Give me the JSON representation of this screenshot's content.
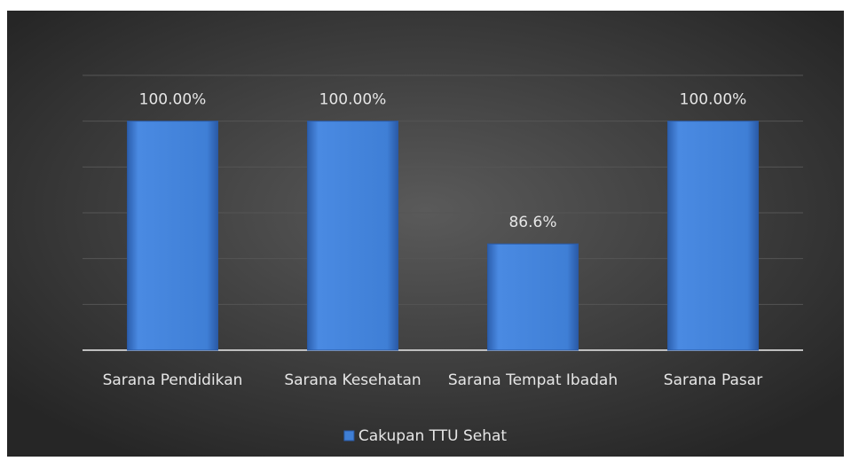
{
  "chart_data": {
    "type": "bar",
    "categories": [
      "Sarana Pendidikan",
      "Sarana Kesehatan",
      "Sarana Tempat Ibadah",
      "Sarana Pasar"
    ],
    "series": [
      {
        "name": "Cakupan TTU Sehat",
        "color": "#3f7fd6",
        "values": [
          100,
          100,
          86.6,
          100
        ],
        "value_labels": [
          "100.00%",
          "100.00%",
          "86.6%",
          "100.00%"
        ]
      }
    ],
    "ylim": [
      75,
      105
    ],
    "yticks": [
      75,
      80,
      85,
      90,
      95,
      100,
      105
    ],
    "grid": true,
    "legend": "bottom"
  }
}
